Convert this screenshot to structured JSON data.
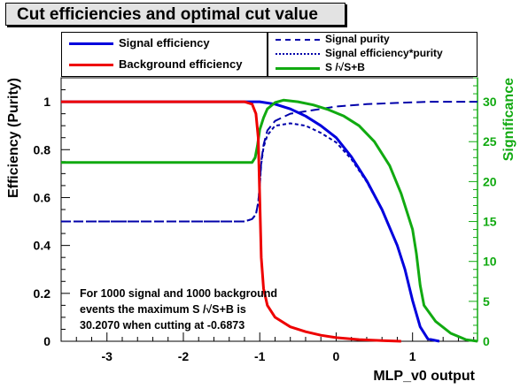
{
  "title": "Cut efficiencies and optimal cut value",
  "legend_left": [
    {
      "label": "Signal efficiency",
      "color": "#0000dd",
      "dash": "solid"
    },
    {
      "label": "Background efficiency",
      "color": "#ee0000",
      "dash": "solid"
    }
  ],
  "legend_right": [
    {
      "label": "Signal purity",
      "color": "#0000aa",
      "dash": "long"
    },
    {
      "label": "Signal efficiency*purity",
      "color": "#0000aa",
      "dash": "short"
    },
    {
      "label": "S /√S+B",
      "color": "#11aa11",
      "dash": "solid"
    }
  ],
  "annotation": [
    "For 1000 signal and 1000 background",
    "events the maximum S /√S+B is",
    "30.2070 when cutting at -0.6873"
  ],
  "chart_data": {
    "type": "line",
    "title": "Cut efficiencies and optimal cut value",
    "xlabel": "MLP_v0 output",
    "ylabel": "Efficiency (Purity)",
    "y2label": "Significance",
    "xlim": [
      -3.6,
      1.85
    ],
    "ylim": [
      0,
      1.1
    ],
    "y2lim": [
      0,
      33
    ],
    "x_ticks": [
      -3,
      -2,
      -1,
      0,
      1
    ],
    "y_ticks": [
      0,
      0.2,
      0.4,
      0.6,
      0.8,
      1
    ],
    "y2_ticks": [
      0,
      5,
      10,
      15,
      20,
      25,
      30
    ],
    "axis_colors": {
      "left": "#000000",
      "right": "#11aa11"
    },
    "series": [
      {
        "name": "Signal efficiency",
        "axis": "left",
        "color": "#0000dd",
        "dash": "solid",
        "points": [
          [
            -3.6,
            1
          ],
          [
            -1.3,
            1
          ],
          [
            -1.0,
            1
          ],
          [
            -0.8,
            0.99
          ],
          [
            -0.6,
            0.97
          ],
          [
            -0.4,
            0.94
          ],
          [
            -0.2,
            0.9
          ],
          [
            0,
            0.85
          ],
          [
            0.2,
            0.77
          ],
          [
            0.4,
            0.67
          ],
          [
            0.6,
            0.55
          ],
          [
            0.8,
            0.4
          ],
          [
            0.9,
            0.3
          ],
          [
            1.0,
            0.17
          ],
          [
            1.1,
            0.06
          ],
          [
            1.2,
            0.01
          ],
          [
            1.35,
            0
          ]
        ]
      },
      {
        "name": "Background efficiency",
        "axis": "left",
        "color": "#ee0000",
        "dash": "solid",
        "points": [
          [
            -3.6,
            1
          ],
          [
            -1.2,
            1
          ],
          [
            -1.1,
            0.99
          ],
          [
            -1.05,
            0.95
          ],
          [
            -1.02,
            0.85
          ],
          [
            -1.0,
            0.6
          ],
          [
            -0.98,
            0.35
          ],
          [
            -0.95,
            0.22
          ],
          [
            -0.9,
            0.15
          ],
          [
            -0.8,
            0.1
          ],
          [
            -0.6,
            0.06
          ],
          [
            -0.4,
            0.04
          ],
          [
            -0.2,
            0.025
          ],
          [
            0,
            0.015
          ],
          [
            0.3,
            0.007
          ],
          [
            0.6,
            0.003
          ],
          [
            0.85,
            0
          ]
        ]
      },
      {
        "name": "Signal purity",
        "axis": "left",
        "color": "#0000aa",
        "dash": "long",
        "points": [
          [
            -3.6,
            0.5
          ],
          [
            -1.2,
            0.5
          ],
          [
            -1.1,
            0.51
          ],
          [
            -1.05,
            0.53
          ],
          [
            -1.02,
            0.58
          ],
          [
            -1.0,
            0.65
          ],
          [
            -0.98,
            0.75
          ],
          [
            -0.95,
            0.82
          ],
          [
            -0.9,
            0.88
          ],
          [
            -0.8,
            0.92
          ],
          [
            -0.6,
            0.95
          ],
          [
            -0.4,
            0.96
          ],
          [
            -0.2,
            0.97
          ],
          [
            0,
            0.98
          ],
          [
            0.4,
            0.99
          ],
          [
            0.8,
            0.995
          ],
          [
            1.2,
            1
          ],
          [
            1.85,
            1
          ]
        ]
      },
      {
        "name": "Signal efficiency*purity",
        "axis": "left",
        "color": "#0000aa",
        "dash": "short",
        "points": [
          [
            -3.6,
            0.5
          ],
          [
            -1.2,
            0.5
          ],
          [
            -1.1,
            0.51
          ],
          [
            -1.05,
            0.53
          ],
          [
            -1.02,
            0.58
          ],
          [
            -1.0,
            0.65
          ],
          [
            -0.98,
            0.74
          ],
          [
            -0.95,
            0.81
          ],
          [
            -0.9,
            0.86
          ],
          [
            -0.8,
            0.9
          ],
          [
            -0.6,
            0.91
          ],
          [
            -0.4,
            0.9
          ],
          [
            -0.2,
            0.87
          ],
          [
            0,
            0.83
          ],
          [
            0.2,
            0.76
          ],
          [
            0.4,
            0.665
          ],
          [
            0.6,
            0.548
          ],
          [
            0.8,
            0.398
          ],
          [
            0.9,
            0.299
          ],
          [
            1.0,
            0.17
          ],
          [
            1.1,
            0.06
          ],
          [
            1.2,
            0.01
          ],
          [
            1.35,
            0
          ]
        ]
      },
      {
        "name": "S /√S+B",
        "axis": "right",
        "color": "#11aa11",
        "dash": "solid",
        "points": [
          [
            -3.6,
            22.4
          ],
          [
            -1.1,
            22.4
          ],
          [
            -1.06,
            23
          ],
          [
            -1.03,
            24.5
          ],
          [
            -1.0,
            26.5
          ],
          [
            -0.95,
            28
          ],
          [
            -0.9,
            29.1
          ],
          [
            -0.8,
            29.9
          ],
          [
            -0.69,
            30.2
          ],
          [
            -0.5,
            30
          ],
          [
            -0.3,
            29.6
          ],
          [
            -0.1,
            29
          ],
          [
            0.1,
            28.2
          ],
          [
            0.3,
            27
          ],
          [
            0.5,
            25
          ],
          [
            0.7,
            22
          ],
          [
            0.85,
            18.5
          ],
          [
            1.0,
            14
          ],
          [
            1.05,
            11
          ],
          [
            1.1,
            7
          ],
          [
            1.15,
            4.5
          ],
          [
            1.3,
            2.5
          ],
          [
            1.5,
            1
          ],
          [
            1.7,
            0.2
          ],
          [
            1.85,
            0
          ]
        ]
      }
    ]
  }
}
